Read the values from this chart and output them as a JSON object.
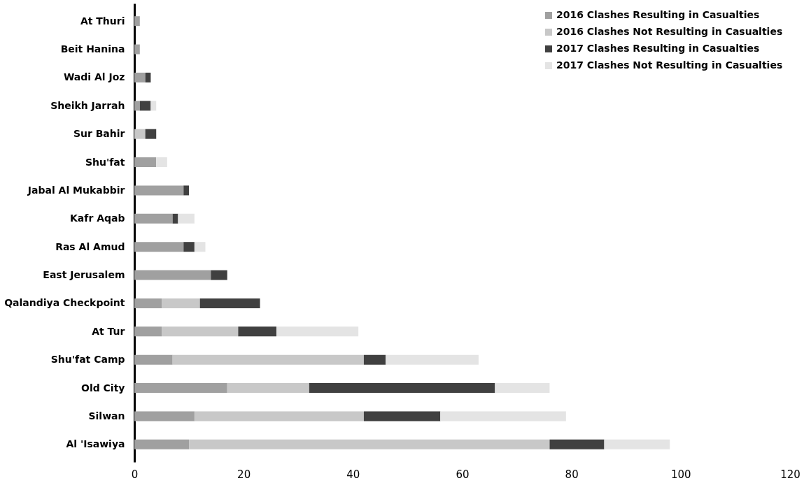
{
  "chart_data": {
    "type": "bar",
    "orientation": "horizontal",
    "stacked": true,
    "categories": [
      "At Thuri",
      "Beit Hanina",
      "Wadi Al Joz",
      "Sheikh Jarrah",
      "Sur Bahir",
      "Shu'fat ",
      "Jabal Al Mukabbir",
      "Kafr Aqab",
      "Ras Al Amud",
      "East Jerusalem ",
      "Qalandiya Checkpoint",
      "At Tur",
      "Shu'fat Camp",
      "Old City",
      "Silwan",
      "Al 'Isawiya"
    ],
    "series": [
      {
        "name": "2016 Clashes Resulting in Casualties",
        "color": "#a0a0a0",
        "values": [
          1,
          1,
          2,
          1,
          0,
          4,
          9,
          7,
          9,
          14,
          5,
          5,
          7,
          17,
          11,
          10
        ]
      },
      {
        "name": "2016 Clashes Not Resulting in Casualties",
        "color": "#c8c8c8",
        "values": [
          0,
          0,
          0,
          0,
          2,
          0,
          0,
          0,
          0,
          0,
          7,
          14,
          35,
          15,
          31,
          66
        ]
      },
      {
        "name": "2017 Clashes Resulting in Casualties",
        "color": "#404040",
        "values": [
          0,
          0,
          1,
          2,
          2,
          0,
          1,
          1,
          2,
          3,
          11,
          7,
          4,
          34,
          14,
          10
        ]
      },
      {
        "name": "2017 Clashes Not Resulting in Casualties",
        "color": "#e4e4e4",
        "values": [
          0,
          0,
          0,
          1,
          0,
          2,
          0,
          3,
          2,
          0,
          0,
          15,
          17,
          10,
          23,
          12
        ]
      }
    ],
    "xlim": [
      0,
      120
    ],
    "xticks": [
      0,
      20,
      40,
      60,
      80,
      100,
      120
    ],
    "grid": false,
    "legend": "top right"
  }
}
